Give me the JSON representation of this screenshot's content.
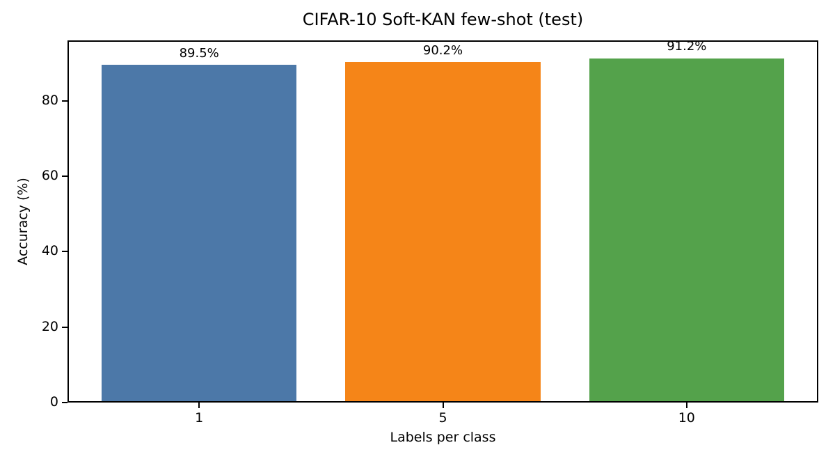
{
  "chart_data": {
    "type": "bar",
    "title": "CIFAR-10 Soft-KAN few-shot (test)",
    "xlabel": "Labels per class",
    "ylabel": "Accuracy (%)",
    "categories": [
      "1",
      "5",
      "10"
    ],
    "values": [
      89.5,
      90.2,
      91.2
    ],
    "bar_labels": [
      "89.5%",
      "90.2%",
      "91.2%"
    ],
    "colors": [
      "#4c78a8",
      "#f58518",
      "#54a24b"
    ],
    "ylim": [
      0,
      96
    ],
    "yticks": [
      0,
      20,
      40,
      60,
      80
    ],
    "bar_width_fraction": 0.8,
    "grid": false,
    "legend": "none",
    "background_color": "#ffffff",
    "text_color": "#000000"
  }
}
